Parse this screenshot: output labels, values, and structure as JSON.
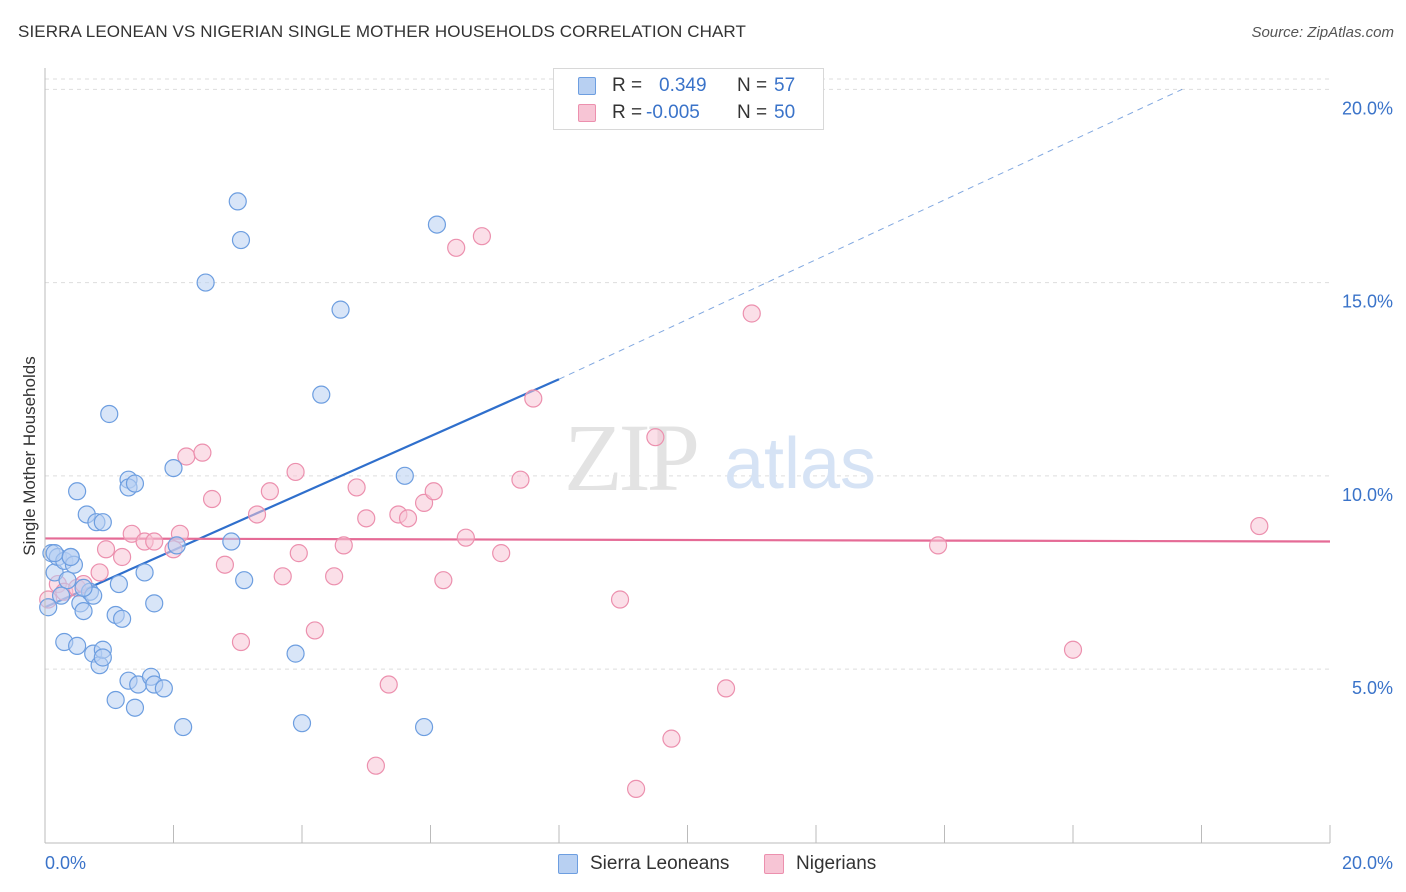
{
  "title": "SIERRA LEONEAN VS NIGERIAN SINGLE MOTHER HOUSEHOLDS CORRELATION CHART",
  "source": "Source: ZipAtlas.com",
  "watermark": {
    "zip": "ZIP",
    "atlas": "atlas"
  },
  "legend": {
    "rows": [
      {
        "r_label": "R =",
        "r_value": "0.349",
        "n_label": "N =",
        "n_value": "57"
      },
      {
        "r_label": "R =",
        "r_value": "-0.005",
        "n_label": "N =",
        "n_value": "50"
      }
    ]
  },
  "bottom_legend": [
    "Sierra Leoneans",
    "Nigerians"
  ],
  "colors": {
    "blue_fill": "#b8d0f2",
    "blue_stroke": "#6d9ee0",
    "blue_line": "#2f6fcc",
    "pink_fill": "#f7c5d5",
    "pink_stroke": "#ec90ae",
    "pink_line": "#e56b96",
    "tick_label": "#3a73c9",
    "grid": "#dddddd"
  },
  "chart_data": {
    "type": "scatter",
    "title": "SIERRA LEONEAN VS NIGERIAN SINGLE MOTHER HOUSEHOLDS CORRELATION CHART",
    "xlabel": "",
    "ylabel": "Single Mother Households",
    "xlim": [
      0,
      20
    ],
    "ylim": [
      0.5,
      20.5
    ],
    "x_tick_labels": [
      "0.0%",
      "20.0%"
    ],
    "y_tick_labels": [
      "5.0%",
      "10.0%",
      "15.0%",
      "20.0%"
    ],
    "y_ticks": [
      5,
      10,
      15,
      20
    ],
    "grid": true,
    "legend_position": "top-center",
    "series": [
      {
        "name": "Sierra Leoneans",
        "r": 0.349,
        "n": 57,
        "trend": {
          "x0": 0.0,
          "y0": 6.6,
          "x1": 8.0,
          "y1": 12.5,
          "dashed_to_x": 17.7,
          "dashed_to_y": 20.0
        },
        "points": [
          [
            0.1,
            8.0
          ],
          [
            0.15,
            7.5
          ],
          [
            0.2,
            7.9
          ],
          [
            0.3,
            7.8
          ],
          [
            0.35,
            7.3
          ],
          [
            0.4,
            7.9
          ],
          [
            0.45,
            7.7
          ],
          [
            0.5,
            9.6
          ],
          [
            0.55,
            6.7
          ],
          [
            0.6,
            6.5
          ],
          [
            0.65,
            9.0
          ],
          [
            0.7,
            7.0
          ],
          [
            0.75,
            6.9
          ],
          [
            0.8,
            8.8
          ],
          [
            0.9,
            8.8
          ],
          [
            1.0,
            11.6
          ],
          [
            1.1,
            6.4
          ],
          [
            1.15,
            7.2
          ],
          [
            1.2,
            6.3
          ],
          [
            1.3,
            9.9
          ],
          [
            1.3,
            9.7
          ],
          [
            1.4,
            9.8
          ],
          [
            1.55,
            7.5
          ],
          [
            1.7,
            6.7
          ],
          [
            2.0,
            10.2
          ],
          [
            2.05,
            8.2
          ],
          [
            2.5,
            15.0
          ],
          [
            2.9,
            8.3
          ],
          [
            3.0,
            17.1
          ],
          [
            3.05,
            16.1
          ],
          [
            3.1,
            7.3
          ],
          [
            3.9,
            5.4
          ],
          [
            4.0,
            3.6
          ],
          [
            4.3,
            12.1
          ],
          [
            4.6,
            14.3
          ],
          [
            5.6,
            10.0
          ],
          [
            5.9,
            3.5
          ],
          [
            6.1,
            16.5
          ],
          [
            0.3,
            5.7
          ],
          [
            0.5,
            5.6
          ],
          [
            0.75,
            5.4
          ],
          [
            0.85,
            5.1
          ],
          [
            0.9,
            5.5
          ],
          [
            0.9,
            5.3
          ],
          [
            1.1,
            4.2
          ],
          [
            1.3,
            4.7
          ],
          [
            1.4,
            4.0
          ],
          [
            1.45,
            4.6
          ],
          [
            1.65,
            4.8
          ],
          [
            1.7,
            4.6
          ],
          [
            1.85,
            4.5
          ],
          [
            2.15,
            3.5
          ],
          [
            0.05,
            6.6
          ],
          [
            0.25,
            6.9
          ],
          [
            0.6,
            7.1
          ],
          [
            0.15,
            8.0
          ],
          [
            0.4,
            7.9
          ]
        ]
      },
      {
        "name": "Nigerians",
        "r": -0.005,
        "n": 50,
        "trend": {
          "x0": 0.0,
          "y0": 8.38,
          "x1": 20.0,
          "y1": 8.3
        },
        "points": [
          [
            0.05,
            6.8
          ],
          [
            0.2,
            7.2
          ],
          [
            0.3,
            7.0
          ],
          [
            0.5,
            7.1
          ],
          [
            0.6,
            7.2
          ],
          [
            0.85,
            7.5
          ],
          [
            0.95,
            8.1
          ],
          [
            1.2,
            7.9
          ],
          [
            1.35,
            8.5
          ],
          [
            1.55,
            8.3
          ],
          [
            1.7,
            8.3
          ],
          [
            2.0,
            8.1
          ],
          [
            2.1,
            8.5
          ],
          [
            2.2,
            10.5
          ],
          [
            2.45,
            10.6
          ],
          [
            2.6,
            9.4
          ],
          [
            2.8,
            7.7
          ],
          [
            3.05,
            5.7
          ],
          [
            3.3,
            9.0
          ],
          [
            3.5,
            9.6
          ],
          [
            3.7,
            7.4
          ],
          [
            3.9,
            10.1
          ],
          [
            3.95,
            8.0
          ],
          [
            4.2,
            6.0
          ],
          [
            4.5,
            7.4
          ],
          [
            4.65,
            8.2
          ],
          [
            4.85,
            9.7
          ],
          [
            5.0,
            8.9
          ],
          [
            5.15,
            2.5
          ],
          [
            5.35,
            4.6
          ],
          [
            5.5,
            9.0
          ],
          [
            5.65,
            8.9
          ],
          [
            5.9,
            9.3
          ],
          [
            6.05,
            9.6
          ],
          [
            6.2,
            7.3
          ],
          [
            6.4,
            15.9
          ],
          [
            6.55,
            8.4
          ],
          [
            6.8,
            16.2
          ],
          [
            7.1,
            8.0
          ],
          [
            7.4,
            9.9
          ],
          [
            7.6,
            12.0
          ],
          [
            8.95,
            6.8
          ],
          [
            9.2,
            1.9
          ],
          [
            9.5,
            11.0
          ],
          [
            9.75,
            3.2
          ],
          [
            10.6,
            4.5
          ],
          [
            11.0,
            14.2
          ],
          [
            13.9,
            8.2
          ],
          [
            16.0,
            5.5
          ],
          [
            18.9,
            8.7
          ]
        ]
      }
    ]
  }
}
